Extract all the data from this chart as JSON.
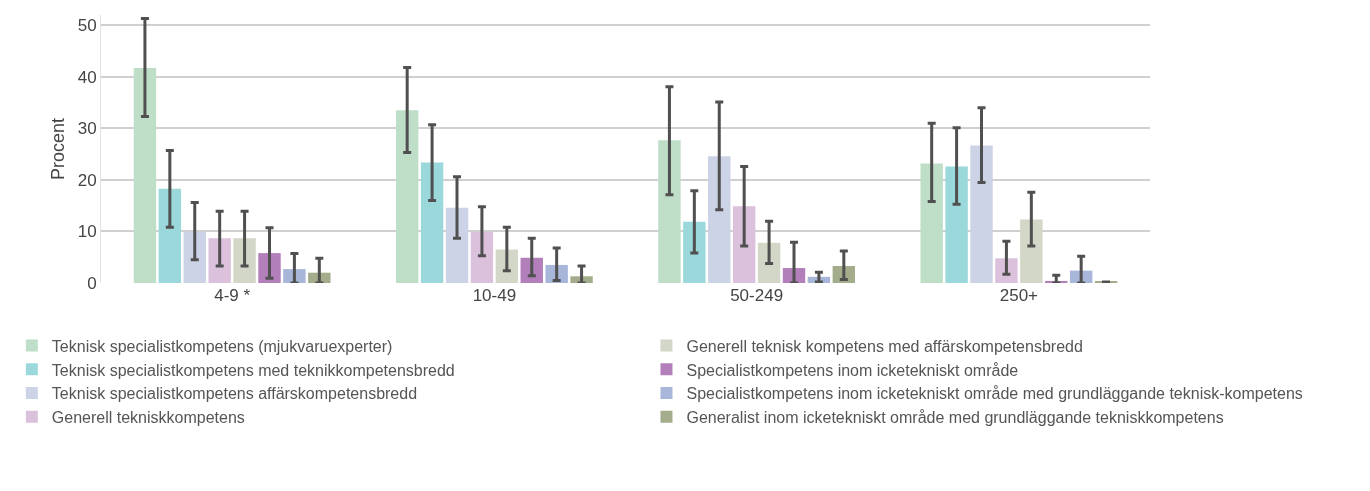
{
  "chart_data": {
    "type": "bar",
    "ylabel": "Procent",
    "categories": [
      "4-9 *",
      "10-49",
      "50-249",
      "250+"
    ],
    "ylim": [
      0,
      52
    ],
    "yticks": [
      0,
      10,
      20,
      30,
      40,
      50
    ],
    "grid": "y",
    "legend": "bottom",
    "series": [
      {
        "name": "Teknisk specialistkompetens (mjukvaruexperter)",
        "color": "#bfdec8",
        "values": [
          41.7,
          33.5,
          27.7,
          23.2
        ],
        "errors": [
          [
            32.3,
            51.3
          ],
          [
            25.3,
            41.8
          ],
          [
            17.1,
            38.1
          ],
          [
            15.8,
            31.0
          ]
        ]
      },
      {
        "name": "Teknisk specialistkompetens med teknikkompetensbredd",
        "color": "#9ad8db",
        "values": [
          18.3,
          23.4,
          11.9,
          22.6
        ],
        "errors": [
          [
            10.8,
            25.7
          ],
          [
            16.0,
            30.7
          ],
          [
            5.8,
            17.9
          ],
          [
            15.3,
            30.1
          ]
        ]
      },
      {
        "name": "Teknisk specialistkompetens affärskompetensbredd",
        "color": "#cdd3e6",
        "values": [
          10.0,
          14.6,
          24.6,
          26.7
        ],
        "errors": [
          [
            4.5,
            15.6
          ],
          [
            8.7,
            20.6
          ],
          [
            14.2,
            35.1
          ],
          [
            19.5,
            34.0
          ]
        ]
      },
      {
        "name": "Generell tekniskkompetens",
        "color": "#dbc1dc",
        "values": [
          8.7,
          9.9,
          14.9,
          4.8
        ],
        "errors": [
          [
            3.3,
            13.9
          ],
          [
            5.3,
            14.8
          ],
          [
            7.2,
            22.6
          ],
          [
            1.7,
            8.1
          ]
        ]
      },
      {
        "name": "Generell teknisk kompetens med affärskompetensbredd",
        "color": "#d3d7c8",
        "values": [
          8.7,
          6.5,
          7.8,
          12.3
        ],
        "errors": [
          [
            3.3,
            13.9
          ],
          [
            2.4,
            10.8
          ],
          [
            3.8,
            12.0
          ],
          [
            7.2,
            17.6
          ]
        ]
      },
      {
        "name": "Specialistkompetens inom icketekniskt område",
        "color": "#b27fbb",
        "values": [
          5.8,
          4.9,
          2.9,
          0.4
        ],
        "errors": [
          [
            0.9,
            10.7
          ],
          [
            1.4,
            8.7
          ],
          [
            0,
            7.9
          ],
          [
            0,
            1.5
          ]
        ]
      },
      {
        "name": "Specialistkompetens inom icketekniskt område med grundläggande teknisk-kompetens",
        "color": "#a8b6da",
        "values": [
          2.7,
          3.5,
          1.2,
          2.4
        ],
        "errors": [
          [
            0,
            5.7
          ],
          [
            0.5,
            6.8
          ],
          [
            0.2,
            2.1
          ],
          [
            0,
            5.2
          ]
        ]
      },
      {
        "name": "Generalist inom icketekniskt område med grundläggande tekniskkompetens",
        "color": "#a3ad8b",
        "values": [
          2.0,
          1.3,
          3.3,
          0.2
        ],
        "errors": [
          [
            0,
            4.8
          ],
          [
            0,
            3.3
          ],
          [
            0.7,
            6.2
          ],
          null
        ]
      }
    ]
  }
}
